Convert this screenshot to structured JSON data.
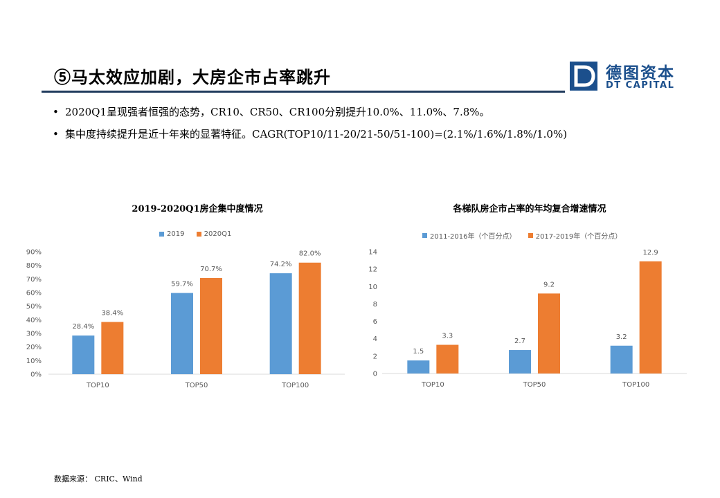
{
  "slide": {
    "title": "⑤马太效应加剧，大房企市占率跳升",
    "bullets": [
      "2020Q1呈现强者恒强的态势，CR10、CR50、CR100分别提升10.0%、11.0%、7.8%。",
      "集中度持续提升是近十年来的显著特征。CAGR(TOP10/11-20/21-50/51-100)=(2.1%/1.6%/1.8%/1.0%)"
    ],
    "bullet_marker": "•",
    "source": "数据来源： CRIC、Wind"
  },
  "logo": {
    "mark": "D",
    "cn": "德图资本",
    "en": "DT CAPITAL"
  },
  "colors": {
    "series1": "#5b9bd5",
    "series2": "#ed7d31",
    "title_rule": "#1f3a5c",
    "brand": "#1b4f8c"
  },
  "chart_data": [
    {
      "type": "bar",
      "title": "2019-2020Q1房企集中度情况",
      "categories": [
        "TOP10",
        "TOP50",
        "TOP100"
      ],
      "series": [
        {
          "name": "2019",
          "values": [
            28.4,
            59.7,
            74.2
          ],
          "labels": [
            "28.4%",
            "59.7%",
            "74.2%"
          ]
        },
        {
          "name": "2020Q1",
          "values": [
            38.4,
            70.7,
            82.0
          ],
          "labels": [
            "38.4%",
            "70.7%",
            "82.0%"
          ]
        }
      ],
      "ylim": [
        0,
        90
      ],
      "yticks": [
        "0%",
        "10%",
        "20%",
        "30%",
        "40%",
        "50%",
        "60%",
        "70%",
        "80%",
        "90%"
      ],
      "legend": "top-center",
      "grid": false
    },
    {
      "type": "bar",
      "title": "各梯队房企市占率的年均复合增速情况",
      "categories": [
        "TOP10",
        "TOP50",
        "TOP100"
      ],
      "series": [
        {
          "name": "2011-2016年（个百分点）",
          "values": [
            1.5,
            2.7,
            3.2
          ],
          "labels": [
            "1.5",
            "2.7",
            "3.2"
          ]
        },
        {
          "name": "2017-2019年（个百分点）",
          "values": [
            3.3,
            9.2,
            12.9
          ],
          "labels": [
            "3.3",
            "9.2",
            "12.9"
          ]
        }
      ],
      "ylim": [
        0,
        14
      ],
      "yticks": [
        "0",
        "2",
        "4",
        "6",
        "8",
        "10",
        "12",
        "14"
      ],
      "legend": "top-center",
      "grid": false
    }
  ]
}
